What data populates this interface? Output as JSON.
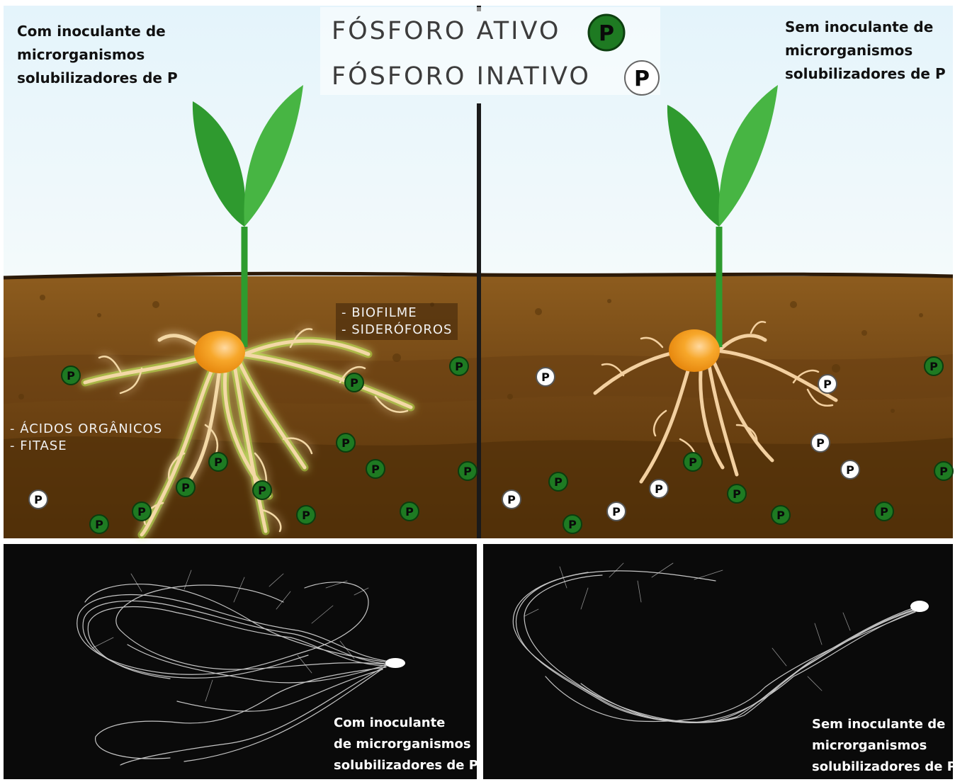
{
  "legend": {
    "active_label": "FÓSFORO ATIVO",
    "inactive_label": "FÓSFORO INATIVO",
    "active_color": "#1e7a22",
    "inactive_color": "#ffffff",
    "p_symbol": "P"
  },
  "left_panel": {
    "title_lines": [
      "Com inoculante de",
      "microrganismos",
      "solubilizadores de P"
    ],
    "tags_top": [
      "- BIOFILME",
      "- SIDERÓFOROS"
    ],
    "tags_left": [
      "- ÁCIDOS ORGÂNICOS",
      "- FITASE"
    ]
  },
  "right_panel": {
    "title_lines": [
      "Sem inoculante de",
      "microrganismos",
      "solubilizadores de P"
    ]
  },
  "photos": {
    "left_caption": [
      "Com inoculante",
      "de microrganismos",
      "solubilizadores de P"
    ],
    "right_caption": [
      "Sem inoculante de",
      "microrganismos",
      "solubilizadores de P"
    ]
  },
  "colors": {
    "sky_top": "#e3f3fb",
    "soil_top": "#8a5a1c",
    "soil_bottom": "#4e2f0b",
    "leaf": "#3aa83a",
    "seed": "#f5a623",
    "root": "#f1d6a4",
    "root_glow": "#a8ff3a",
    "photo_bg": "#0a0a0a"
  }
}
